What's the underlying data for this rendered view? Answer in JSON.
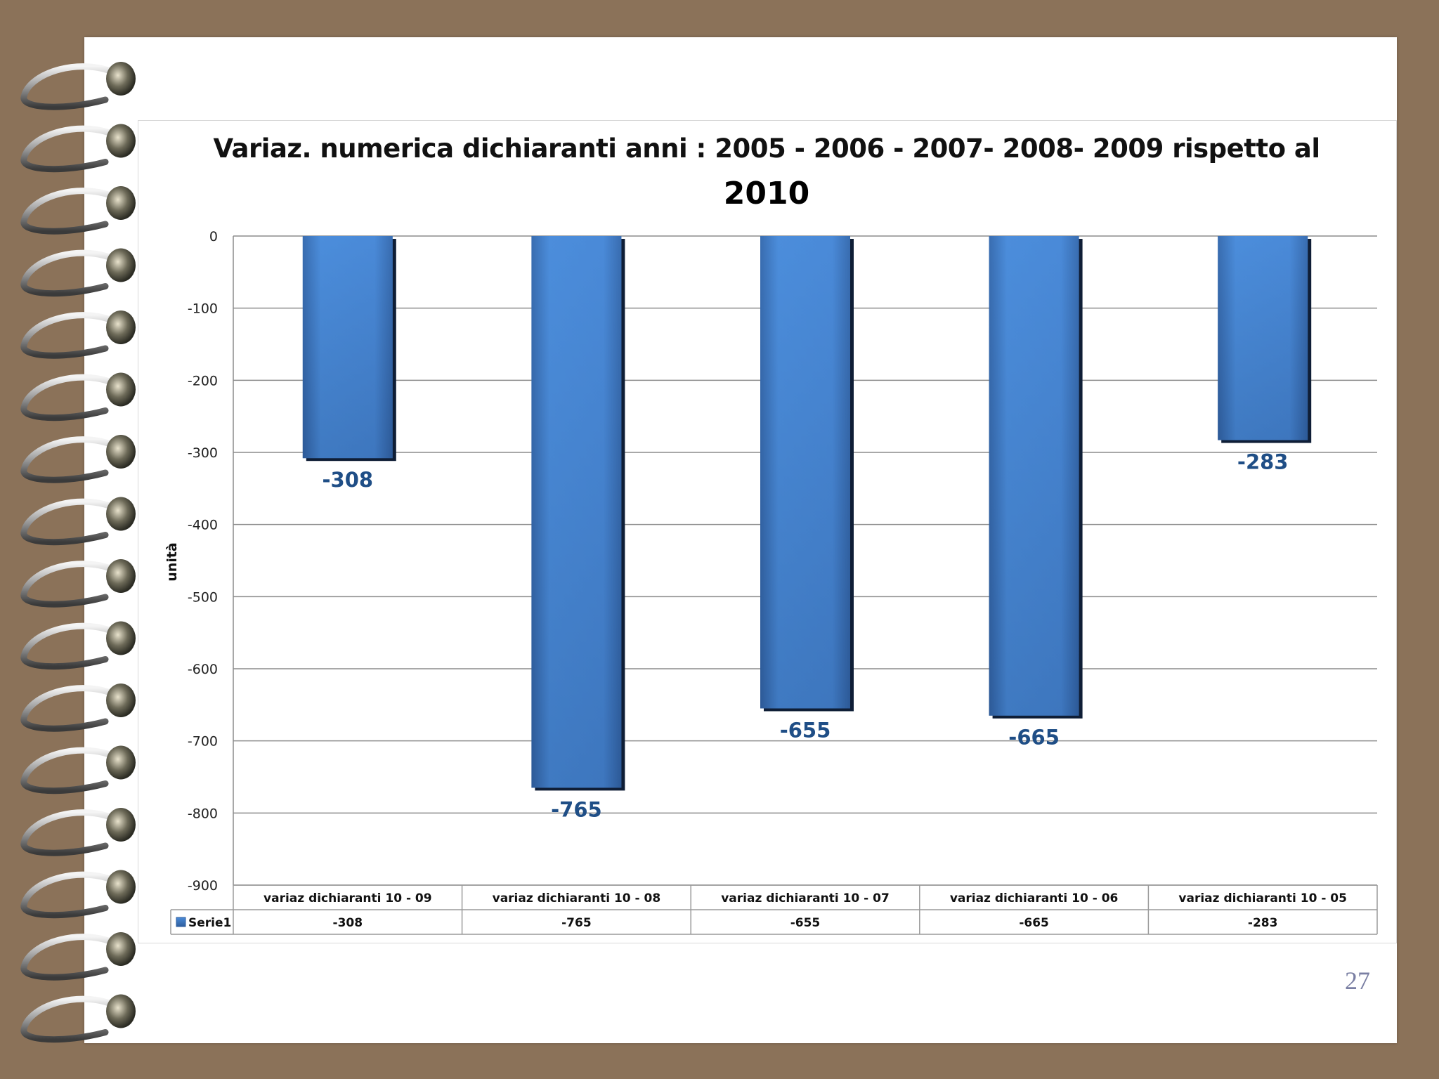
{
  "slide": {
    "page_number": "27"
  },
  "chart_data": {
    "type": "bar",
    "title": "Variaz. numerica dichiaranti anni : 2005 - 2006 - 2007- 2008- 2009  rispetto al",
    "subtitle": "2010",
    "ylabel": "unità",
    "xlabel": "",
    "ylim": [
      -900,
      0
    ],
    "yticks": [
      "0",
      "-100",
      "-200",
      "-300",
      "-400",
      "-500",
      "-600",
      "-700",
      "-800",
      "-900"
    ],
    "grid": true,
    "categories": [
      "variaz dichiaranti 10 - 09",
      "variaz dichiaranti 10 - 08",
      "variaz dichiaranti 10 - 07",
      "variaz dichiaranti 10 - 06",
      "variaz dichiaranti 10 - 05"
    ],
    "series": [
      {
        "name": "Serie1",
        "values": [
          -308,
          -765,
          -655,
          -665,
          -283
        ],
        "labels": [
          "-308",
          "-765",
          "-655",
          "-665",
          "-283"
        ]
      }
    ],
    "data_table": true,
    "colors": {
      "bar_light": "#4a8ad8",
      "bar_dark": "#2e5e9e",
      "label": "#1f4e86",
      "grid": "#8c8c8c"
    }
  }
}
